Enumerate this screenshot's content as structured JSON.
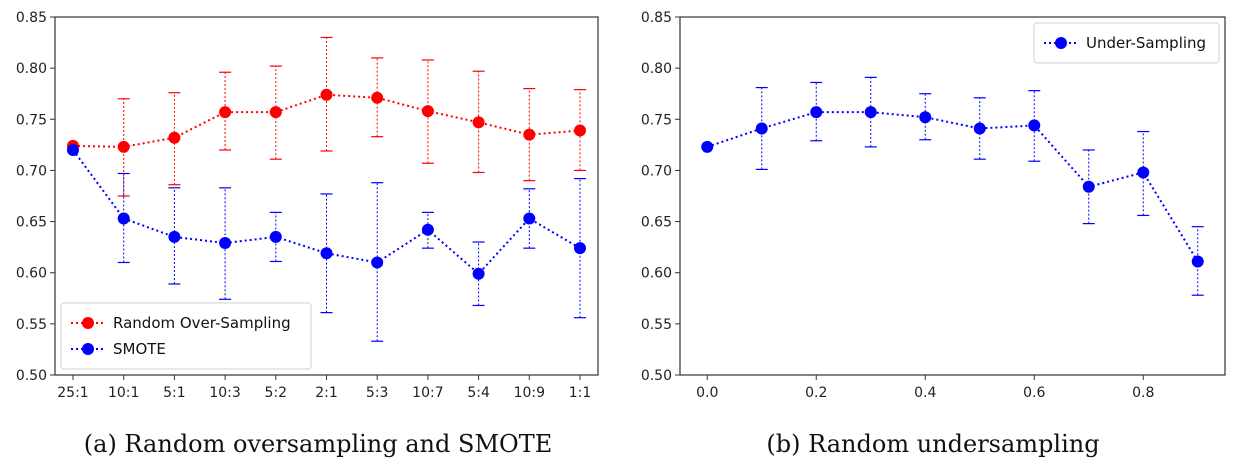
{
  "chart_data": [
    {
      "type": "line",
      "caption": "(a) Random oversampling and SMOTE",
      "categories": [
        "25:1",
        "10:1",
        "5:1",
        "10:3",
        "5:2",
        "2:1",
        "5:3",
        "10:7",
        "5:4",
        "10:9",
        "1:1"
      ],
      "ylim": [
        0.5,
        0.85
      ],
      "yticks": [
        "0.50",
        "0.55",
        "0.60",
        "0.65",
        "0.70",
        "0.75",
        "0.80",
        "0.85"
      ],
      "grid": false,
      "legend_position": "bottom-left",
      "series": [
        {
          "name": "Random Over-Sampling",
          "color": "#ff0000",
          "values": [
            0.724,
            0.723,
            0.732,
            0.757,
            0.757,
            0.774,
            0.771,
            0.758,
            0.747,
            0.735,
            0.739
          ],
          "err_low": [
            0.724,
            0.675,
            0.686,
            0.72,
            0.711,
            0.719,
            0.733,
            0.707,
            0.698,
            0.69,
            0.7
          ],
          "err_high": [
            0.724,
            0.77,
            0.776,
            0.796,
            0.802,
            0.83,
            0.81,
            0.808,
            0.797,
            0.78,
            0.779
          ]
        },
        {
          "name": "SMOTE",
          "color": "#0000ff",
          "values": [
            0.72,
            0.653,
            0.635,
            0.629,
            0.635,
            0.619,
            0.61,
            0.642,
            0.599,
            0.653,
            0.624
          ],
          "err_low": [
            0.72,
            0.61,
            0.589,
            0.574,
            0.611,
            0.561,
            0.533,
            0.624,
            0.568,
            0.624,
            0.556
          ],
          "err_high": [
            0.72,
            0.697,
            0.683,
            0.683,
            0.659,
            0.677,
            0.688,
            0.659,
            0.63,
            0.682,
            0.692
          ]
        }
      ]
    },
    {
      "type": "line",
      "caption": "(b) Random undersampling",
      "x": [
        0.0,
        0.1,
        0.2,
        0.3,
        0.4,
        0.5,
        0.6,
        0.7,
        0.8,
        0.9
      ],
      "xlim": [
        -0.05,
        0.95
      ],
      "xticks": [
        "0.0",
        "0.2",
        "0.4",
        "0.6",
        "0.8"
      ],
      "xtick_values": [
        0.0,
        0.2,
        0.4,
        0.6,
        0.8
      ],
      "ylim": [
        0.5,
        0.85
      ],
      "yticks": [
        "0.50",
        "0.55",
        "0.60",
        "0.65",
        "0.70",
        "0.75",
        "0.80",
        "0.85"
      ],
      "grid": false,
      "legend_position": "top-right",
      "series": [
        {
          "name": "Under-Sampling",
          "color": "#0000ff",
          "values": [
            0.723,
            0.741,
            0.757,
            0.757,
            0.752,
            0.741,
            0.744,
            0.684,
            0.698,
            0.611
          ],
          "err_low": [
            0.723,
            0.701,
            0.729,
            0.723,
            0.73,
            0.711,
            0.709,
            0.648,
            0.656,
            0.578
          ],
          "err_high": [
            0.723,
            0.781,
            0.786,
            0.791,
            0.775,
            0.771,
            0.778,
            0.72,
            0.738,
            0.645
          ]
        }
      ]
    }
  ]
}
